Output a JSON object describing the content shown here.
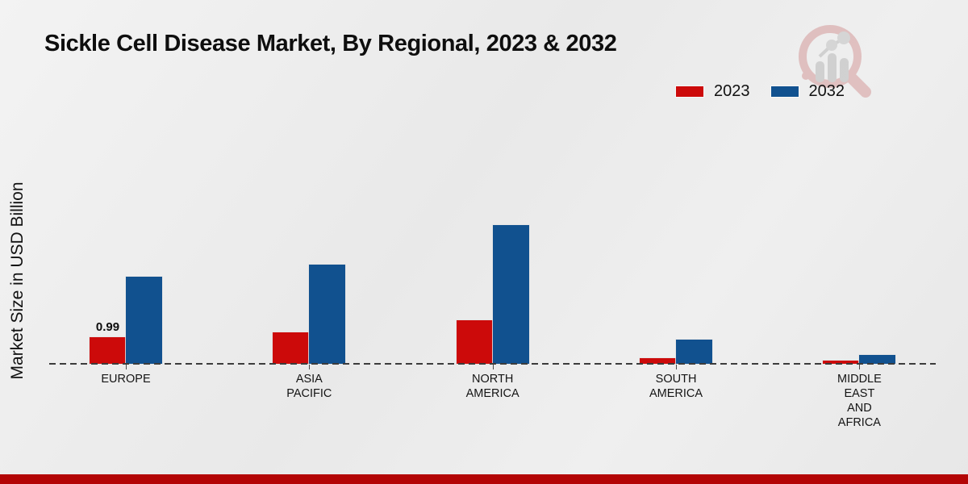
{
  "title": "Sickle Cell Disease Market, By Regional, 2023 & 2032",
  "y_axis_label": "Market Size in USD Billion",
  "watermark_icon": "magnifier-bar-chart-logo",
  "legend": {
    "items": [
      {
        "label": "2023",
        "color": "#cc0a0a"
      },
      {
        "label": "2032",
        "color": "#11518f"
      }
    ]
  },
  "footer": {
    "bar_color": "#b30505"
  },
  "chart_data": {
    "type": "bar",
    "title": "Sickle Cell Disease Market, By Regional, 2023 & 2032",
    "xlabel": "",
    "ylabel": "Market Size in USD Billion",
    "categories": [
      "EUROPE",
      "ASIA PACIFIC",
      "NORTH AMERICA",
      "SOUTH AMERICA",
      "MIDDLE EAST AND AFRICA"
    ],
    "series": [
      {
        "name": "2023",
        "color": "#cc0a0a",
        "values": [
          0.99,
          1.15,
          1.6,
          0.21,
          0.12
        ]
      },
      {
        "name": "2032",
        "color": "#11518f",
        "values": [
          3.2,
          3.65,
          5.1,
          0.9,
          0.33
        ]
      }
    ],
    "annotations": [
      {
        "category": "EUROPE",
        "series": "2023",
        "text": "0.99"
      }
    ],
    "ylim": [
      0,
      5.5
    ],
    "grid": false,
    "axis_line_style": "dashed",
    "legend_position": "top-right"
  }
}
